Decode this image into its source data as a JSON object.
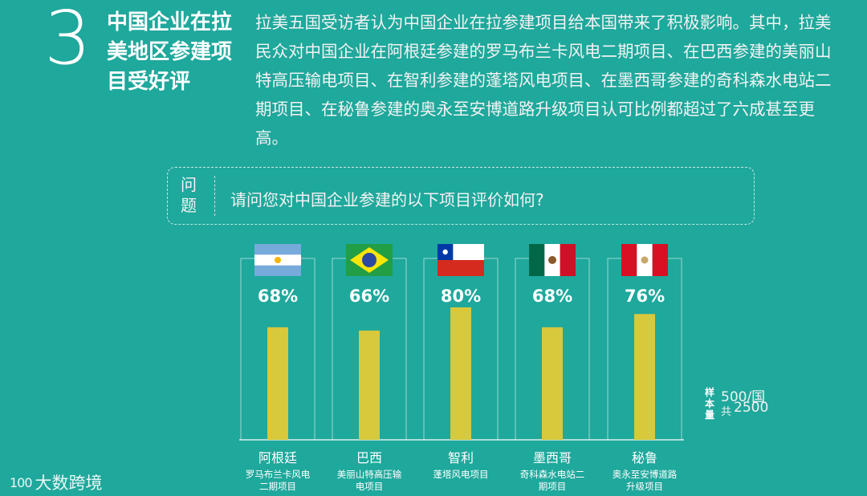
{
  "section": {
    "number": "3",
    "title": "中国企业在拉美地区参建项目受好评"
  },
  "intro": "拉美五国受访者认为中国企业在拉参建项目给本国带来了积极影响。其中，拉美民众对中国企业在阿根廷参建的罗马布兰卡风电二期项目、在巴西参建的美丽山特高压输电项目、在智利参建的蓬塔风电项目、在墨西哥参建的奇科森水电站二期项目、在秘鲁参建的奥永至安博道路升级项目认可比例都超过了六成甚至更高。",
  "question": {
    "tag": "问题",
    "text": "请问您对中国企业参建的以下项目评价如何?"
  },
  "sample": {
    "label": "样本量",
    "per_country": "500/国",
    "total_prefix": "共",
    "total": "2500"
  },
  "watermark": {
    "logo": "100",
    "text": "大数跨境"
  },
  "colors": {
    "background": "#1fa89c",
    "bar": "#d8c83c",
    "frame": "#ffffff"
  },
  "chart_data": {
    "type": "bar",
    "categories": [
      "阿根廷",
      "巴西",
      "智利",
      "墨西哥",
      "秘鲁"
    ],
    "projects": [
      "罗马布兰卡风电二期项目",
      "美丽山特高压输电项目",
      "蓬塔风电项目",
      "奇科森水电站二期项目",
      "奥永至安博道路升级项目"
    ],
    "values": [
      68,
      66,
      80,
      68,
      76
    ],
    "value_labels": [
      "68%",
      "66%",
      "80%",
      "68%",
      "76%"
    ],
    "flags": [
      "argentina-flag",
      "brazil-flag",
      "chile-flag",
      "mexico-flag",
      "peru-flag"
    ],
    "ylim": [
      0,
      100
    ]
  }
}
